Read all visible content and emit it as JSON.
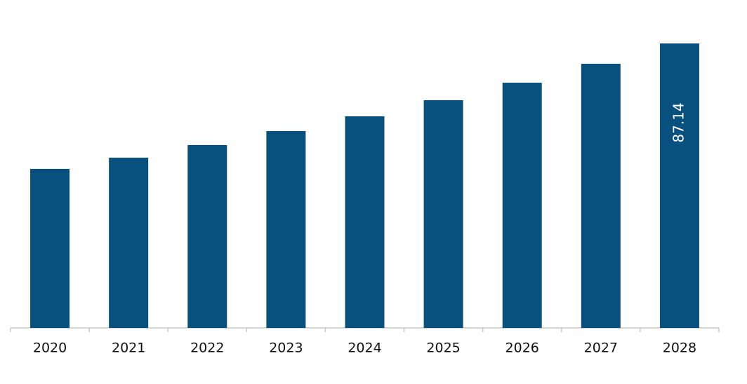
{
  "chart_data": {
    "type": "bar",
    "categories": [
      "2020",
      "2021",
      "2022",
      "2023",
      "2024",
      "2025",
      "2026",
      "2027",
      "2028"
    ],
    "values": [
      48.72,
      52.15,
      56.02,
      60.31,
      64.82,
      69.75,
      75.12,
      80.92,
      87.14
    ],
    "value_labels": [
      null,
      null,
      null,
      null,
      null,
      null,
      null,
      null,
      "87.14"
    ],
    "color": "#08517f"
  }
}
